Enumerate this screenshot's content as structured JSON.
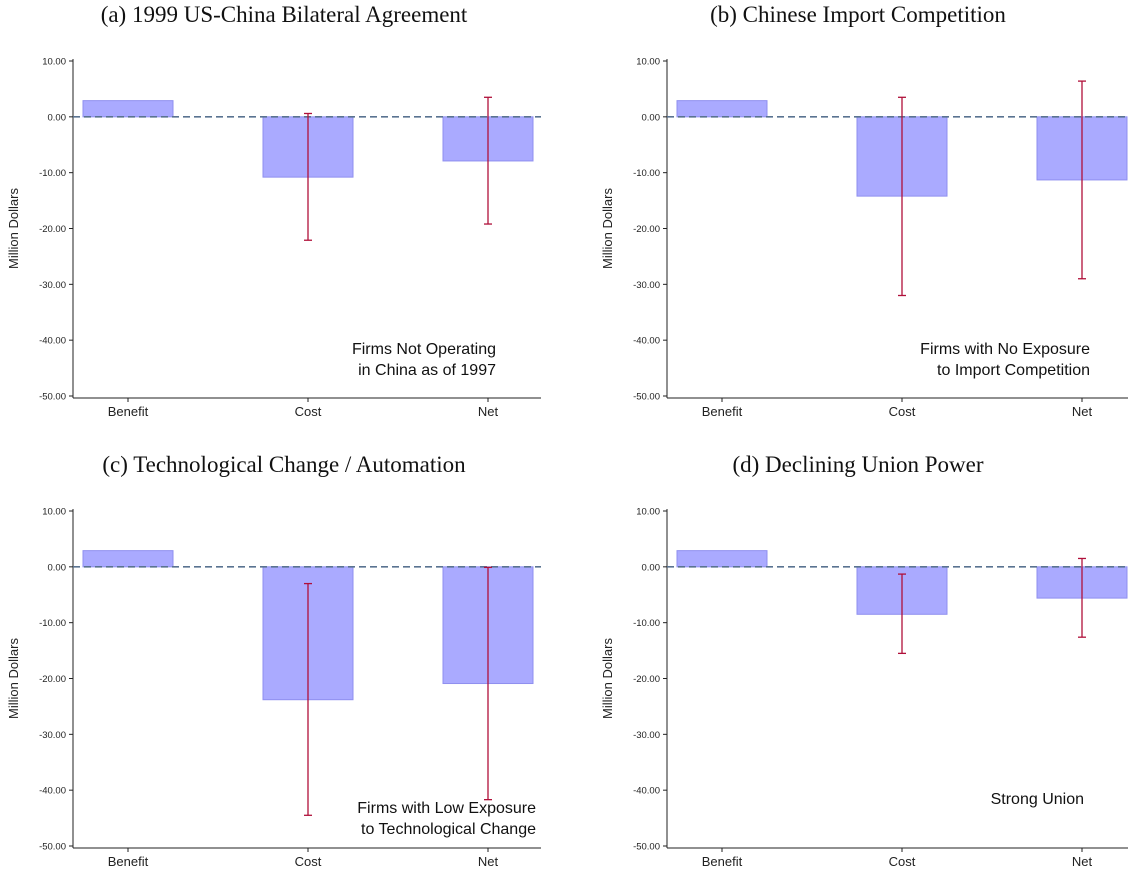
{
  "chart_data": [
    {
      "type": "bar",
      "title": "(a) 1999 US-China Bilateral Agreement",
      "ylabel": "Million Dollars",
      "xlabel": "",
      "categories": [
        "Benefit",
        "Cost",
        "Net"
      ],
      "values": [
        2.9,
        -10.8,
        -7.9
      ],
      "error_bars": [
        null,
        {
          "low": -22.1,
          "high": 0.6
        },
        {
          "low": -19.2,
          "high": 3.5
        }
      ],
      "ylim": [
        -50,
        10
      ],
      "yticks": [
        "10.00",
        "0.00",
        "-10.00",
        "-20.00",
        "-30.00",
        "-40.00",
        "-50.00"
      ],
      "reference_line": 0,
      "annotation": [
        "Firms Not Operating",
        "in China as of 1997"
      ],
      "grid": false,
      "legend": "none"
    },
    {
      "type": "bar",
      "title": "(b) Chinese Import Competition",
      "ylabel": "Million Dollars",
      "xlabel": "",
      "categories": [
        "Benefit",
        "Cost",
        "Net"
      ],
      "values": [
        2.9,
        -14.2,
        -11.3
      ],
      "error_bars": [
        null,
        {
          "low": -32.0,
          "high": 3.5
        },
        {
          "low": -29.0,
          "high": 6.4
        }
      ],
      "ylim": [
        -50,
        10
      ],
      "yticks": [
        "10.00",
        "0.00",
        "-10.00",
        "-20.00",
        "-30.00",
        "-40.00",
        "-50.00"
      ],
      "reference_line": 0,
      "annotation": [
        "Firms with No Exposure",
        "to Import Competition"
      ],
      "grid": false,
      "legend": "none"
    },
    {
      "type": "bar",
      "title": "(c) Technological Change / Automation",
      "ylabel": "Million Dollars",
      "xlabel": "",
      "categories": [
        "Benefit",
        "Cost",
        "Net"
      ],
      "values": [
        2.9,
        -23.8,
        -20.9
      ],
      "error_bars": [
        null,
        {
          "low": -44.5,
          "high": -3.0
        },
        {
          "low": -41.7,
          "high": -0.1
        }
      ],
      "ylim": [
        -50,
        10
      ],
      "yticks": [
        "10.00",
        "0.00",
        "-10.00",
        "-20.00",
        "-30.00",
        "-40.00",
        "-50.00"
      ],
      "reference_line": 0,
      "annotation": [
        "Firms with Low Exposure",
        "to Technological Change"
      ],
      "grid": false,
      "legend": "none"
    },
    {
      "type": "bar",
      "title": "(d) Declining Union Power",
      "ylabel": "Million Dollars",
      "xlabel": "",
      "categories": [
        "Benefit",
        "Cost",
        "Net"
      ],
      "values": [
        2.9,
        -8.5,
        -5.6
      ],
      "error_bars": [
        null,
        {
          "low": -15.5,
          "high": -1.3
        },
        {
          "low": -12.6,
          "high": 1.5
        }
      ],
      "ylim": [
        -50,
        10
      ],
      "yticks": [
        "10.00",
        "0.00",
        "-10.00",
        "-20.00",
        "-30.00",
        "-40.00",
        "-50.00"
      ],
      "reference_line": 0,
      "annotation": [
        "Strong Union"
      ],
      "grid": false,
      "legend": "none"
    }
  ],
  "colors": {
    "bar_fill": "#aaaaff",
    "bar_stroke": "#8f8fef",
    "error_bar": "#b0103a",
    "zero_line": "#5a7391",
    "axis": "#222222"
  }
}
